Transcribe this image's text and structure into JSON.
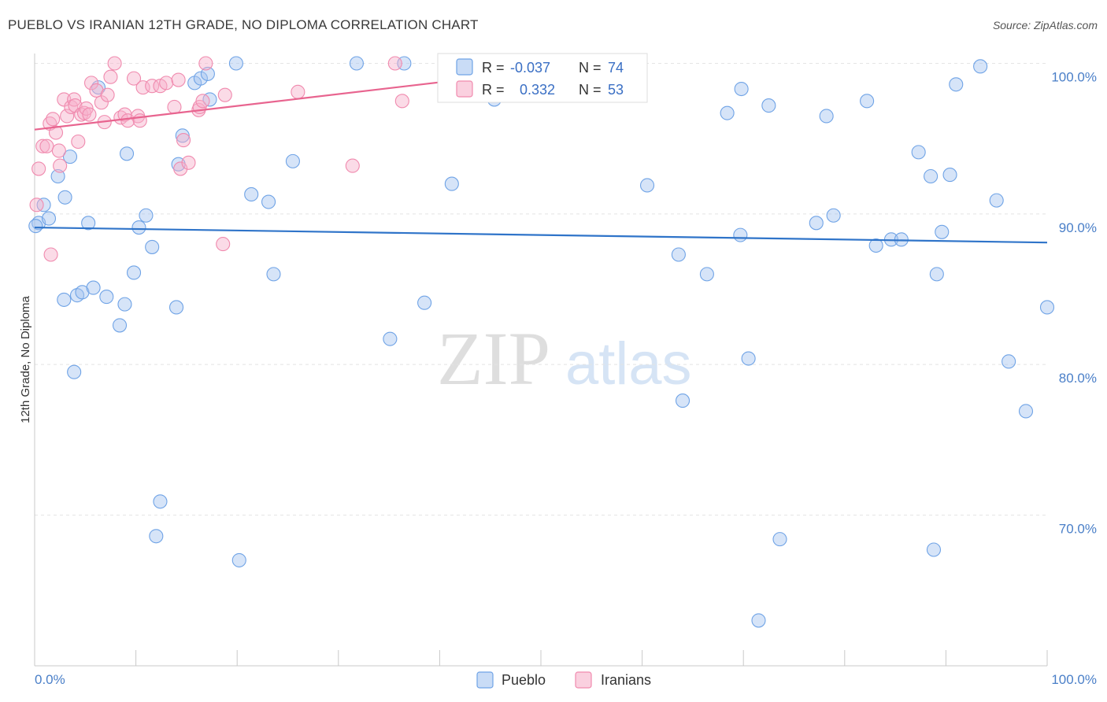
{
  "header": {
    "title": "PUEBLO VS IRANIAN 12TH GRADE, NO DIPLOMA CORRELATION CHART",
    "source": "Source: ZipAtlas.com"
  },
  "watermark": {
    "zip": "ZIP",
    "atlas": "atlas"
  },
  "chart_data": {
    "type": "scatter",
    "ylabel": "12th Grade, No Diploma",
    "xlim": [
      0,
      100
    ],
    "ylim": [
      60,
      104
    ],
    "x_tick_labels": [
      "0.0%",
      "100.0%"
    ],
    "y_ticks": [
      70,
      80,
      90,
      100
    ],
    "y_tick_labels": [
      "70.0%",
      "80.0%",
      "90.0%",
      "100.0%"
    ],
    "grid": true,
    "legend_position": "top-center",
    "legend": [
      {
        "name": "Pueblo",
        "r_label": "R =",
        "r": "-0.037",
        "n_label": "N =",
        "n": "74"
      },
      {
        "name": "Iranians",
        "r_label": "R =",
        "r": "0.332",
        "n_label": "N =",
        "n": "53"
      }
    ],
    "series": [
      {
        "name": "Pueblo",
        "color": "#6fa3e6",
        "fill": "rgba(165,196,240,0.45)",
        "trend_color": "#2f74c9",
        "trend": [
          [
            0,
            89.1
          ],
          [
            100,
            88.1
          ]
        ],
        "points": [
          [
            0.4,
            89.4
          ],
          [
            0.9,
            90.6
          ],
          [
            1.4,
            89.7
          ],
          [
            2.3,
            92.5
          ],
          [
            2.9,
            84.3
          ],
          [
            3.0,
            91.1
          ],
          [
            3.5,
            93.8
          ],
          [
            3.9,
            79.5
          ],
          [
            4.2,
            84.6
          ],
          [
            4.7,
            84.8
          ],
          [
            5.3,
            89.4
          ],
          [
            5.8,
            85.1
          ],
          [
            6.3,
            98.4
          ],
          [
            7.1,
            84.5
          ],
          [
            8.4,
            82.6
          ],
          [
            8.9,
            84.0
          ],
          [
            9.1,
            94.0
          ],
          [
            9.8,
            86.1
          ],
          [
            10.3,
            89.1
          ],
          [
            11.0,
            89.9
          ],
          [
            11.6,
            87.8
          ],
          [
            12.0,
            68.6
          ],
          [
            12.4,
            70.9
          ],
          [
            14.0,
            83.8
          ],
          [
            14.2,
            93.3
          ],
          [
            14.6,
            95.2
          ],
          [
            15.8,
            98.7
          ],
          [
            16.4,
            99.0
          ],
          [
            17.1,
            99.3
          ],
          [
            17.3,
            97.6
          ],
          [
            19.9,
            100.0
          ],
          [
            20.2,
            67.0
          ],
          [
            21.4,
            91.3
          ],
          [
            23.1,
            90.8
          ],
          [
            23.6,
            86.0
          ],
          [
            25.5,
            93.5
          ],
          [
            31.8,
            100.0
          ],
          [
            35.1,
            81.7
          ],
          [
            36.5,
            100.0
          ],
          [
            38.5,
            84.1
          ],
          [
            41.2,
            92.0
          ],
          [
            45.4,
            97.6
          ],
          [
            47.2,
            100.0
          ],
          [
            60.5,
            91.9
          ],
          [
            63.6,
            87.3
          ],
          [
            64.0,
            77.6
          ],
          [
            66.4,
            86.0
          ],
          [
            68.4,
            96.7
          ],
          [
            69.7,
            88.6
          ],
          [
            69.8,
            98.3
          ],
          [
            70.5,
            80.4
          ],
          [
            71.5,
            63.0
          ],
          [
            72.5,
            97.2
          ],
          [
            73.6,
            68.4
          ],
          [
            77.2,
            89.4
          ],
          [
            78.2,
            96.5
          ],
          [
            78.9,
            89.9
          ],
          [
            82.2,
            97.5
          ],
          [
            83.1,
            87.9
          ],
          [
            84.6,
            88.3
          ],
          [
            85.6,
            88.3
          ],
          [
            87.3,
            94.1
          ],
          [
            88.5,
            92.5
          ],
          [
            88.8,
            67.7
          ],
          [
            89.1,
            86.0
          ],
          [
            89.6,
            88.8
          ],
          [
            90.4,
            92.6
          ],
          [
            91.0,
            98.6
          ],
          [
            93.4,
            99.8
          ],
          [
            95.0,
            90.9
          ],
          [
            96.2,
            80.2
          ],
          [
            97.9,
            76.9
          ],
          [
            100.0,
            83.8
          ],
          [
            0.1,
            89.2
          ]
        ]
      },
      {
        "name": "Iranians",
        "color": "#f08aae",
        "fill": "rgba(246,176,202,0.45)",
        "trend_color": "#e8648f",
        "trend": [
          [
            0,
            95.6
          ],
          [
            56,
            100.0
          ]
        ],
        "points": [
          [
            0.2,
            90.6
          ],
          [
            0.4,
            93.0
          ],
          [
            0.8,
            94.5
          ],
          [
            1.2,
            94.5
          ],
          [
            1.5,
            96.0
          ],
          [
            1.6,
            87.3
          ],
          [
            1.8,
            96.3
          ],
          [
            2.1,
            95.4
          ],
          [
            2.4,
            94.2
          ],
          [
            2.5,
            93.2
          ],
          [
            2.9,
            97.6
          ],
          [
            3.2,
            96.5
          ],
          [
            3.6,
            97.1
          ],
          [
            3.9,
            97.6
          ],
          [
            4.0,
            97.2
          ],
          [
            4.3,
            94.8
          ],
          [
            4.6,
            96.6
          ],
          [
            4.9,
            96.7
          ],
          [
            5.1,
            97.0
          ],
          [
            5.4,
            96.6
          ],
          [
            5.6,
            98.7
          ],
          [
            6.1,
            98.2
          ],
          [
            6.6,
            97.4
          ],
          [
            6.9,
            96.1
          ],
          [
            7.2,
            97.9
          ],
          [
            7.5,
            99.1
          ],
          [
            7.9,
            100.0
          ],
          [
            8.5,
            96.4
          ],
          [
            8.9,
            96.6
          ],
          [
            9.2,
            96.2
          ],
          [
            9.8,
            99.0
          ],
          [
            10.2,
            96.5
          ],
          [
            10.4,
            96.2
          ],
          [
            10.7,
            98.4
          ],
          [
            11.6,
            98.5
          ],
          [
            12.4,
            98.5
          ],
          [
            13.0,
            98.7
          ],
          [
            13.8,
            97.1
          ],
          [
            14.2,
            98.9
          ],
          [
            14.4,
            93.0
          ],
          [
            14.7,
            94.9
          ],
          [
            15.2,
            93.4
          ],
          [
            16.2,
            96.9
          ],
          [
            16.3,
            97.1
          ],
          [
            16.6,
            97.5
          ],
          [
            16.9,
            100.0
          ],
          [
            18.6,
            88.0
          ],
          [
            18.8,
            97.9
          ],
          [
            26.0,
            98.1
          ],
          [
            31.4,
            93.2
          ],
          [
            35.6,
            100.0
          ],
          [
            36.3,
            97.5
          ],
          [
            54.2,
            100.0
          ]
        ]
      }
    ]
  }
}
